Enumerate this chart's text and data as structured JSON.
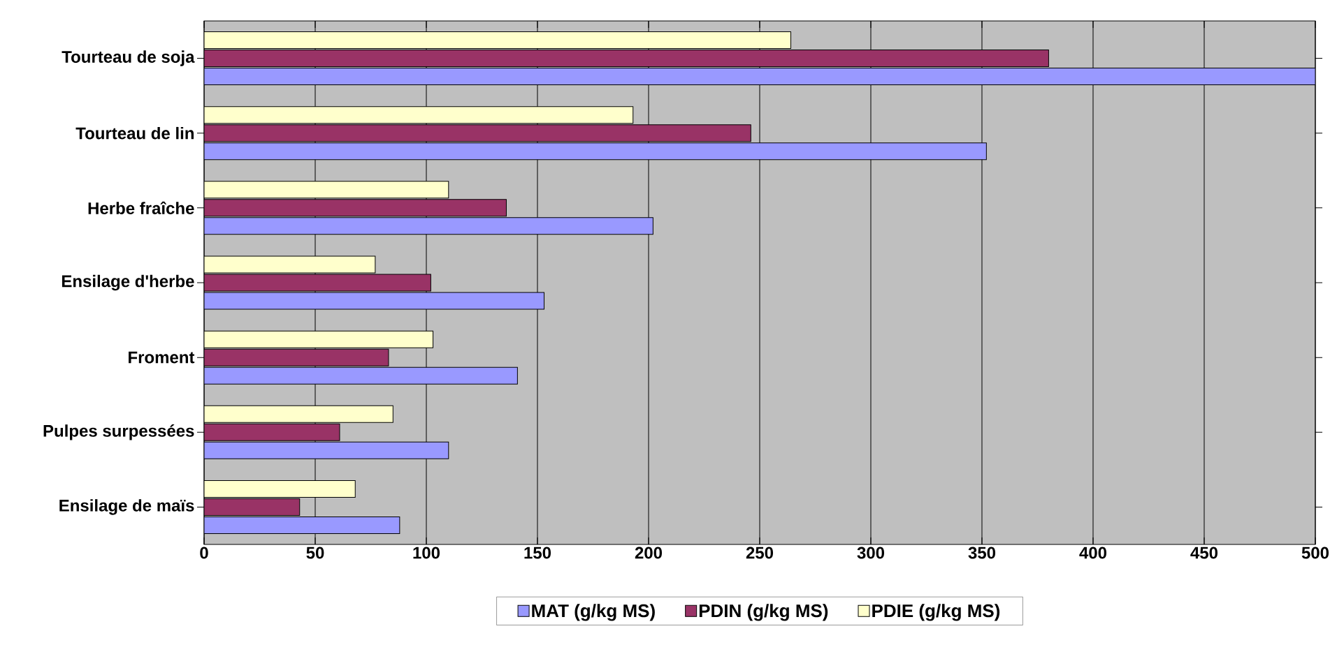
{
  "chart_data": {
    "type": "bar",
    "orientation": "horizontal",
    "categories": [
      "Tourteau de soja",
      "Tourteau de lin",
      "Herbe fraîche",
      "Ensilage d'herbe",
      "Froment",
      "Pulpes surpessées",
      "Ensilage de maïs"
    ],
    "series": [
      {
        "name": "MAT (g/kg MS)",
        "color": "#9999ff",
        "values": [
          500,
          352,
          202,
          153,
          141,
          110,
          88
        ]
      },
      {
        "name": "PDIN (g/kg MS)",
        "color": "#993366",
        "values": [
          380,
          246,
          136,
          102,
          83,
          61,
          43
        ]
      },
      {
        "name": "PDIE (g/kg MS)",
        "color": "#ffffcc",
        "values": [
          264,
          193,
          110,
          77,
          103,
          85,
          68
        ]
      }
    ],
    "xlim": [
      0,
      500
    ],
    "xticks": [
      0,
      50,
      100,
      150,
      200,
      250,
      300,
      350,
      400,
      450,
      500
    ],
    "grid": "x",
    "legend": "bottom"
  }
}
